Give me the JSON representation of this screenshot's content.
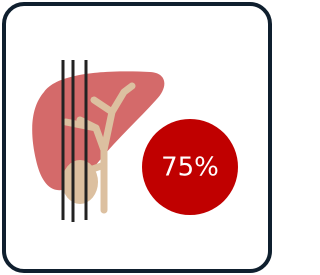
{
  "badge": {
    "label": "75%"
  }
}
